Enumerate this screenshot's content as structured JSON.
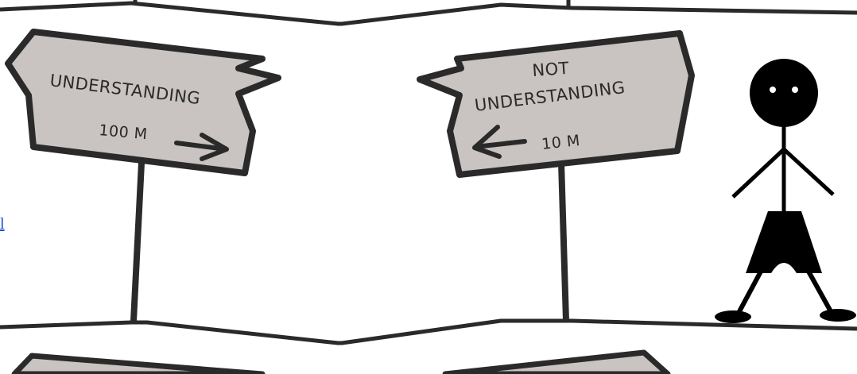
{
  "colors": {
    "sign_fill": "#c9c3c1",
    "outline": "#2a2a2a",
    "figure": "#000000",
    "link": "#1a4fd6"
  },
  "edge_link": {
    "text": "l"
  },
  "sign_left": {
    "label": "UNDERSTANDING",
    "distance": "100 M",
    "arrow_direction": "right"
  },
  "sign_right": {
    "label_line1": "NOT",
    "label_line2": "UNDERSTANDING",
    "distance": "10 M",
    "arrow_direction": "left"
  },
  "figure": {
    "icon": "stick-figure-icon"
  }
}
